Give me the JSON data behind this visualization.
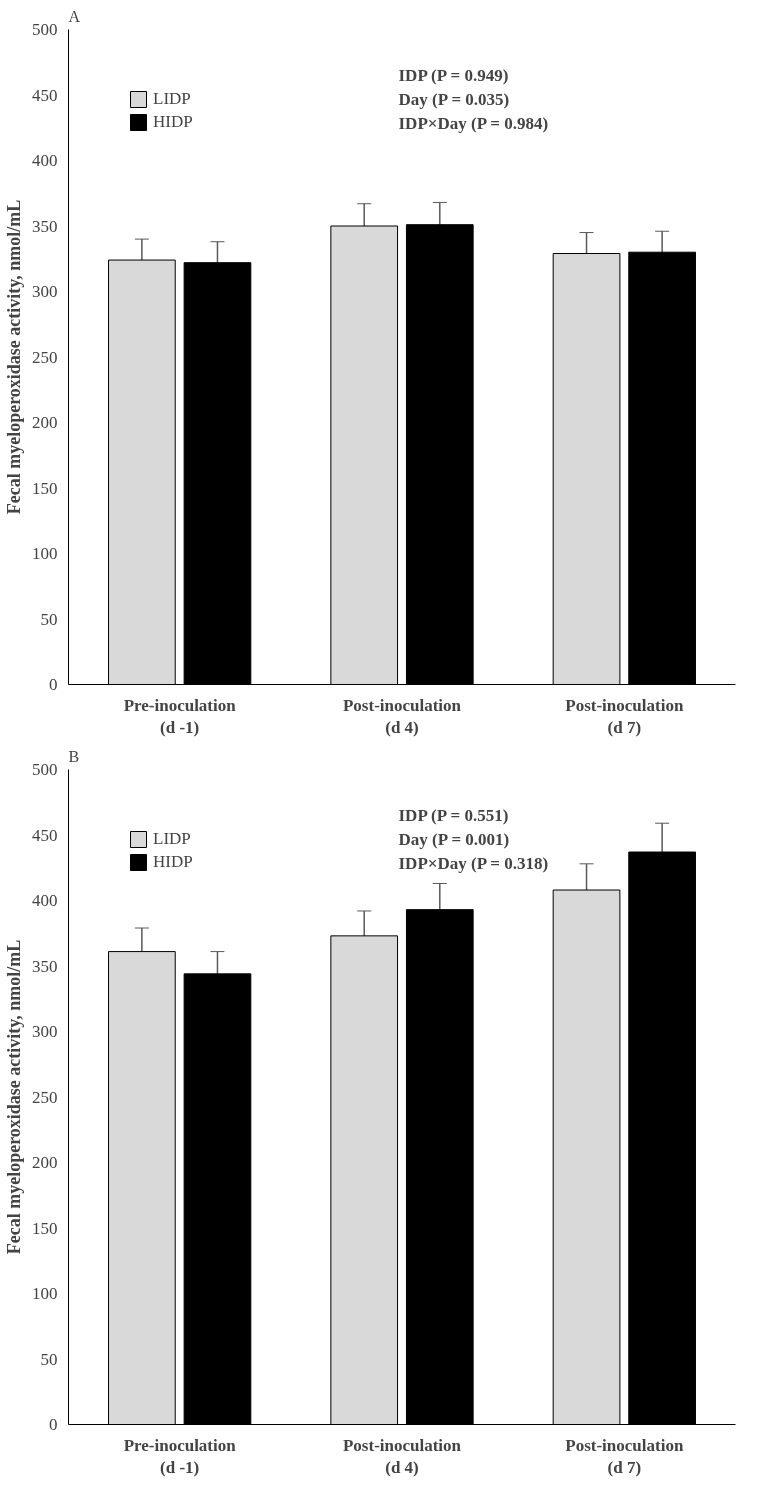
{
  "chart_data": [
    {
      "type": "bar",
      "title": "A",
      "ylabel": "Fecal myeloperoxidase activity, nmol/mL",
      "categories": [
        "Pre-inoculation\n(d -1)",
        "Post-inoculation\n(d 4)",
        "Post-inoculation\n(d 7)"
      ],
      "series": [
        {
          "name": "LIDP",
          "color": "#d9d9d9",
          "values": [
            324,
            350,
            329
          ],
          "errors": [
            16,
            17,
            16
          ]
        },
        {
          "name": "HIDP",
          "color": "#000000",
          "values": [
            322,
            351,
            330
          ],
          "errors": [
            16,
            17,
            16
          ]
        }
      ],
      "ylim": [
        0,
        500
      ],
      "yticks": [
        0,
        50,
        100,
        150,
        200,
        250,
        300,
        350,
        400,
        450,
        500
      ],
      "annotations": [
        "IDP        (P = 0.949)",
        "Day        (P = 0.035)",
        "IDP×Day  (P = 0.984)"
      ],
      "legend": "top left",
      "grid": false
    },
    {
      "type": "bar",
      "title": "B",
      "ylabel": "Fecal myeloperoxidase activity, nmol/mL",
      "categories": [
        "Pre-inoculation\n(d -1)",
        "Post-inoculation\n(d 4)",
        "Post-inoculation\n(d 7)"
      ],
      "series": [
        {
          "name": "LIDP",
          "color": "#d9d9d9",
          "values": [
            361,
            373,
            408
          ],
          "errors": [
            18,
            19,
            20
          ]
        },
        {
          "name": "HIDP",
          "color": "#000000",
          "values": [
            344,
            393,
            437
          ],
          "errors": [
            17,
            20,
            22
          ]
        }
      ],
      "ylim": [
        0,
        500
      ],
      "yticks": [
        0,
        50,
        100,
        150,
        200,
        250,
        300,
        350,
        400,
        450,
        500
      ],
      "annotations": [
        "IDP        (P = 0.551)",
        "Day        (P = 0.001)",
        "IDP×Day  (P = 0.318)"
      ],
      "legend": "top left",
      "grid": false
    }
  ]
}
